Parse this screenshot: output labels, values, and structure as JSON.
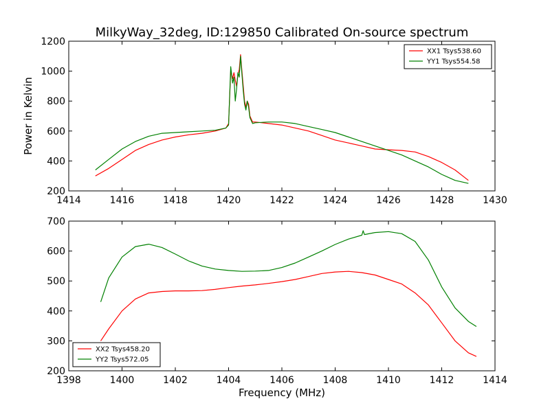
{
  "chart_data": [
    {
      "type": "line",
      "title": "MilkyWay_32deg, ID:129850 Calibrated On-source spectrum",
      "xlabel": "",
      "ylabel": "Power in Kelvin",
      "xlim": [
        1414,
        1430
      ],
      "ylim": [
        200,
        1200
      ],
      "xticks": [
        "1414",
        "1416",
        "1418",
        "1420",
        "1422",
        "1424",
        "1426",
        "1428",
        "1430"
      ],
      "yticks": [
        "200",
        "400",
        "600",
        "800",
        "1000",
        "1200"
      ],
      "legend_position": "top-right",
      "grid": false,
      "series": [
        {
          "name": "XX1 Tsys538.60",
          "color": "#ff0000",
          "x": [
            1415.0,
            1415.5,
            1416.0,
            1416.5,
            1417.0,
            1417.5,
            1418.0,
            1418.5,
            1419.0,
            1419.5,
            1419.9,
            1420.0,
            1420.08,
            1420.15,
            1420.2,
            1420.25,
            1420.3,
            1420.35,
            1420.4,
            1420.45,
            1420.5,
            1420.55,
            1420.6,
            1420.65,
            1420.7,
            1420.75,
            1420.8,
            1420.9,
            1421.0,
            1421.5,
            1422.0,
            1422.5,
            1423.0,
            1423.5,
            1424.0,
            1424.5,
            1425.0,
            1425.5,
            1426.0,
            1426.5,
            1427.0,
            1427.5,
            1428.0,
            1428.5,
            1429.0
          ],
          "y": [
            300,
            350,
            410,
            470,
            510,
            540,
            560,
            575,
            585,
            600,
            620,
            650,
            1000,
            950,
            990,
            940,
            900,
            980,
            1010,
            1110,
            1000,
            900,
            800,
            760,
            800,
            780,
            700,
            660,
            660,
            650,
            640,
            620,
            600,
            570,
            540,
            520,
            500,
            480,
            475,
            470,
            460,
            430,
            390,
            340,
            270
          ]
        },
        {
          "name": "YY1 Tsys554.58",
          "color": "#008000",
          "x": [
            1415.0,
            1415.5,
            1416.0,
            1416.5,
            1417.0,
            1417.5,
            1418.0,
            1418.5,
            1419.0,
            1419.5,
            1419.9,
            1420.0,
            1420.08,
            1420.15,
            1420.2,
            1420.25,
            1420.3,
            1420.35,
            1420.4,
            1420.45,
            1420.5,
            1420.55,
            1420.6,
            1420.65,
            1420.7,
            1420.75,
            1420.8,
            1420.9,
            1421.0,
            1421.5,
            1422.0,
            1422.5,
            1423.0,
            1423.5,
            1424.0,
            1424.5,
            1425.0,
            1425.5,
            1426.0,
            1426.5,
            1427.0,
            1427.5,
            1428.0,
            1428.5,
            1429.0
          ],
          "y": [
            340,
            410,
            480,
            530,
            565,
            585,
            590,
            595,
            600,
            605,
            620,
            640,
            1030,
            920,
            960,
            800,
            880,
            990,
            960,
            1100,
            980,
            870,
            780,
            740,
            800,
            760,
            690,
            650,
            655,
            660,
            660,
            650,
            630,
            610,
            590,
            560,
            530,
            500,
            470,
            440,
            400,
            360,
            310,
            270,
            250
          ]
        }
      ]
    },
    {
      "type": "line",
      "title": "",
      "xlabel": "Frequency (MHz)",
      "ylabel": "",
      "xlim": [
        1398,
        1414
      ],
      "ylim": [
        200,
        700
      ],
      "xticks": [
        "1398",
        "1400",
        "1402",
        "1404",
        "1406",
        "1408",
        "1410",
        "1412",
        "1414"
      ],
      "yticks": [
        "200",
        "300",
        "400",
        "500",
        "600",
        "700"
      ],
      "legend_position": "bottom-left",
      "grid": false,
      "series": [
        {
          "name": "XX2 Tsys458.20",
          "color": "#ff0000",
          "x": [
            1399.2,
            1399.5,
            1400.0,
            1400.5,
            1401.0,
            1401.5,
            1402.0,
            1402.5,
            1403.0,
            1403.5,
            1404.0,
            1404.5,
            1405.0,
            1405.5,
            1406.0,
            1406.5,
            1407.0,
            1407.5,
            1408.0,
            1408.5,
            1409.0,
            1409.5,
            1410.0,
            1410.5,
            1411.0,
            1411.5,
            1412.0,
            1412.5,
            1413.0,
            1413.3
          ],
          "y": [
            300,
            340,
            400,
            440,
            460,
            465,
            467,
            467,
            468,
            472,
            478,
            483,
            487,
            492,
            498,
            505,
            515,
            525,
            530,
            532,
            528,
            520,
            505,
            490,
            460,
            420,
            360,
            300,
            260,
            248
          ]
        },
        {
          "name": "YY2 Tsys572.05",
          "color": "#008000",
          "x": [
            1399.2,
            1399.5,
            1400.0,
            1400.5,
            1401.0,
            1401.5,
            1402.0,
            1402.5,
            1403.0,
            1403.5,
            1404.0,
            1404.5,
            1405.0,
            1405.5,
            1406.0,
            1406.5,
            1407.0,
            1407.5,
            1408.0,
            1408.5,
            1409.0,
            1409.05,
            1409.1,
            1409.5,
            1410.0,
            1410.5,
            1411.0,
            1411.5,
            1412.0,
            1412.5,
            1413.0,
            1413.3
          ],
          "y": [
            430,
            510,
            580,
            615,
            623,
            612,
            590,
            567,
            550,
            540,
            535,
            532,
            533,
            535,
            545,
            560,
            580,
            600,
            622,
            640,
            653,
            668,
            655,
            662,
            665,
            658,
            632,
            570,
            480,
            410,
            365,
            348
          ]
        }
      ]
    }
  ]
}
